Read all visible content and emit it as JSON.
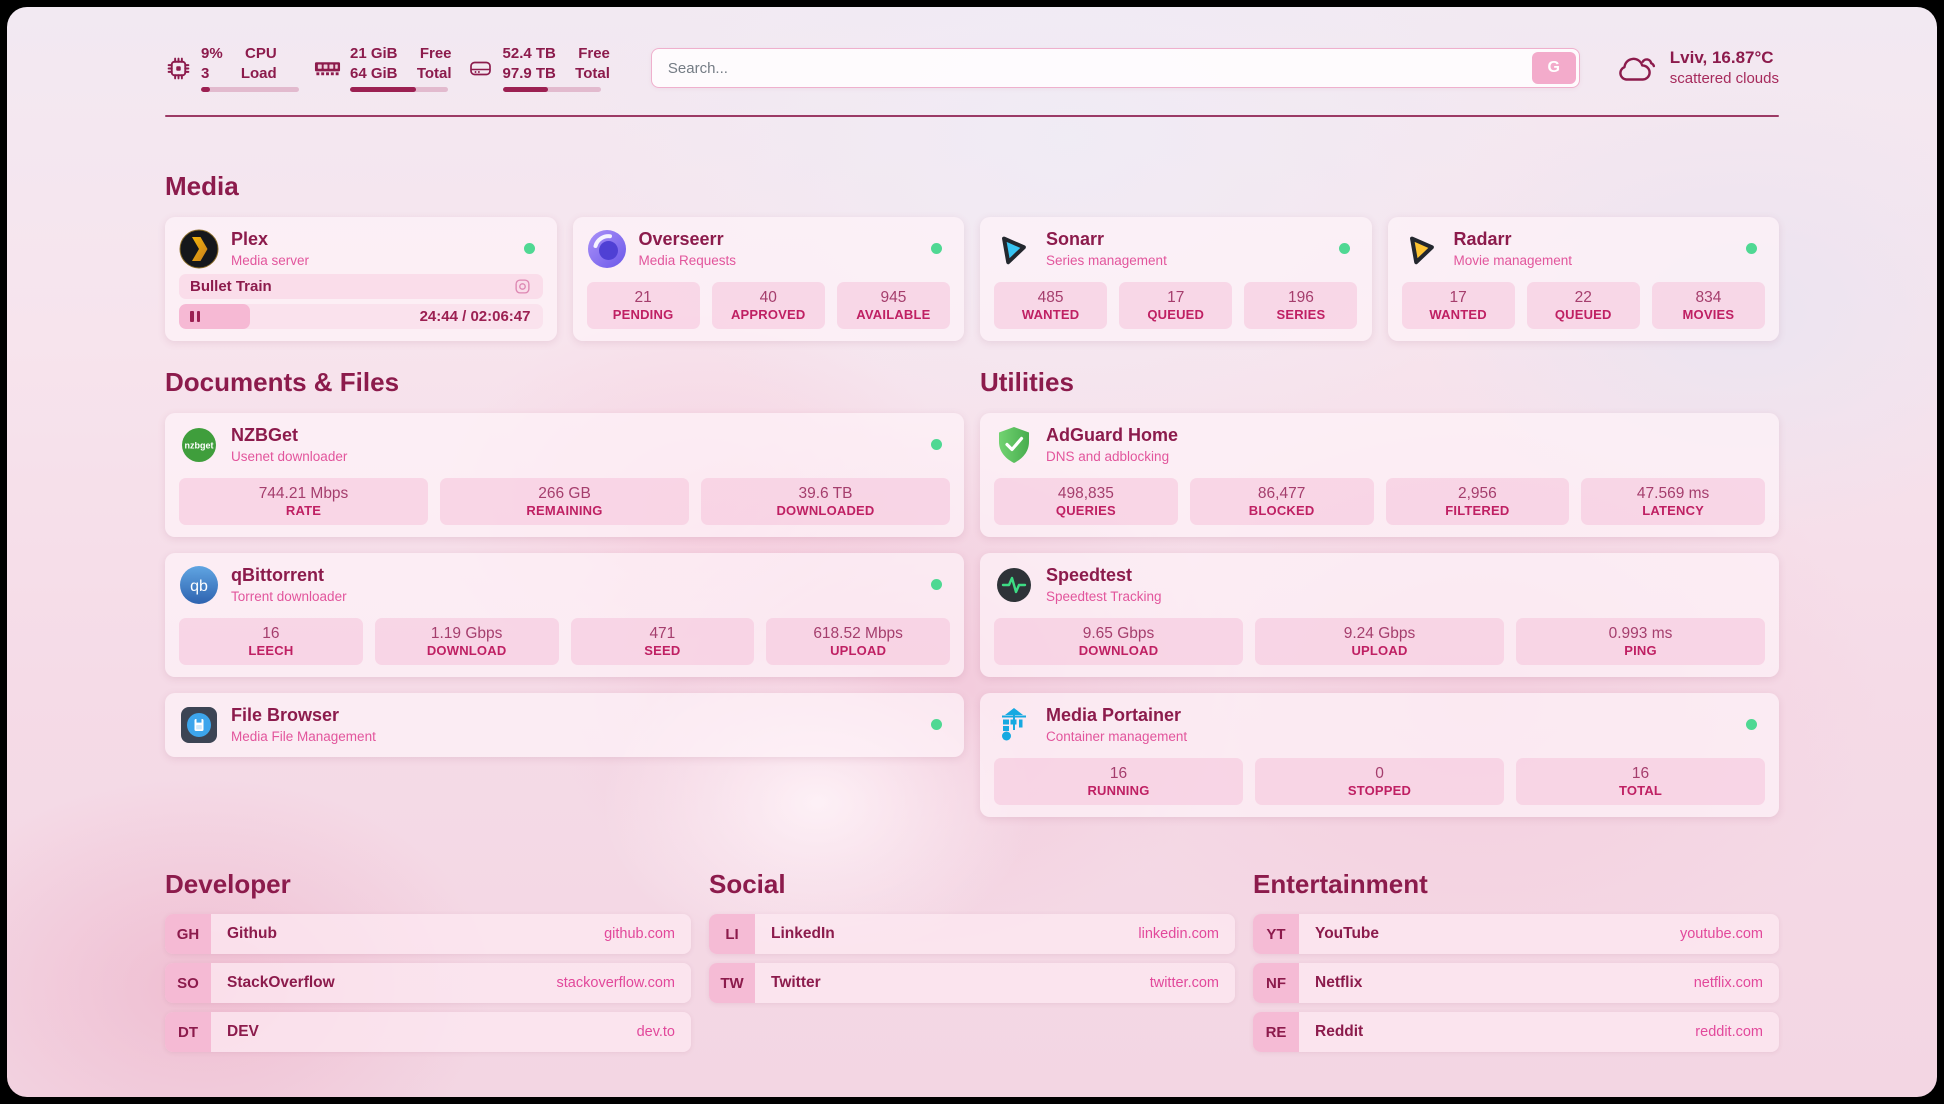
{
  "colors": {
    "accent_maroon": "#8c1b4c",
    "pink_text": "#e2559c",
    "label_crimson": "#bf2063",
    "status_green": "#4fd893",
    "search_button_bg": "#f3abcb"
  },
  "header": {
    "cpu": {
      "top_value": "9%",
      "bottom_value": "3",
      "top_label": "CPU",
      "bottom_label": "Load",
      "progress": 9
    },
    "memory": {
      "top_value": "21 GiB",
      "bottom_value": "64 GiB",
      "top_label": "Free",
      "bottom_label": "Total",
      "progress": 67
    },
    "storage": {
      "top_value": "52.4 TB",
      "bottom_value": "97.9 TB",
      "top_label": "Free",
      "bottom_label": "Total",
      "progress": 46
    },
    "search": {
      "placeholder": "Search...",
      "button_label": "G"
    },
    "weather": {
      "location_temp": "Lviv, 16.87°C",
      "condition": "scattered clouds"
    }
  },
  "sections": {
    "media": "Media",
    "documents": "Documents & Files",
    "utilities": "Utilities",
    "developer": "Developer",
    "social": "Social",
    "entertainment": "Entertainment"
  },
  "apps": {
    "plex": {
      "title": "Plex",
      "subtitle": "Media server",
      "online": true,
      "now_playing": {
        "title": "Bullet Train",
        "time": "24:44 / 02:06:47",
        "progress": 19.5,
        "state": "paused"
      }
    },
    "overseerr": {
      "title": "Overseerr",
      "subtitle": "Media Requests",
      "online": true,
      "stats": [
        {
          "value": "21",
          "label": "PENDING"
        },
        {
          "value": "40",
          "label": "APPROVED"
        },
        {
          "value": "945",
          "label": "AVAILABLE"
        }
      ]
    },
    "sonarr": {
      "title": "Sonarr",
      "subtitle": "Series management",
      "online": true,
      "stats": [
        {
          "value": "485",
          "label": "WANTED"
        },
        {
          "value": "17",
          "label": "QUEUED"
        },
        {
          "value": "196",
          "label": "SERIES"
        }
      ]
    },
    "radarr": {
      "title": "Radarr",
      "subtitle": "Movie management",
      "online": true,
      "stats": [
        {
          "value": "17",
          "label": "WANTED"
        },
        {
          "value": "22",
          "label": "QUEUED"
        },
        {
          "value": "834",
          "label": "MOVIES"
        }
      ]
    },
    "nzbget": {
      "title": "NZBGet",
      "subtitle": "Usenet downloader",
      "online": true,
      "stats": [
        {
          "value": "744.21 Mbps",
          "label": "RATE"
        },
        {
          "value": "266 GB",
          "label": "REMAINING"
        },
        {
          "value": "39.6 TB",
          "label": "DOWNLOADED"
        }
      ]
    },
    "qbittorrent": {
      "title": "qBittorrent",
      "subtitle": "Torrent downloader",
      "online": true,
      "stats": [
        {
          "value": "16",
          "label": "LEECH"
        },
        {
          "value": "1.19 Gbps",
          "label": "DOWNLOAD"
        },
        {
          "value": "471",
          "label": "SEED"
        },
        {
          "value": "618.52 Mbps",
          "label": "UPLOAD"
        }
      ]
    },
    "filebrowser": {
      "title": "File Browser",
      "subtitle": "Media File Management",
      "online": true
    },
    "adguard": {
      "title": "AdGuard Home",
      "subtitle": "DNS and adblocking",
      "online": false,
      "stats": [
        {
          "value": "498,835",
          "label": "QUERIES"
        },
        {
          "value": "86,477",
          "label": "BLOCKED"
        },
        {
          "value": "2,956",
          "label": "FILTERED"
        },
        {
          "value": "47.569 ms",
          "label": "LATENCY"
        }
      ]
    },
    "speedtest": {
      "title": "Speedtest",
      "subtitle": "Speedtest Tracking",
      "online": false,
      "stats": [
        {
          "value": "9.65 Gbps",
          "label": "DOWNLOAD"
        },
        {
          "value": "9.24 Gbps",
          "label": "UPLOAD"
        },
        {
          "value": "0.993 ms",
          "label": "PING"
        }
      ]
    },
    "portainer": {
      "title": "Media Portainer",
      "subtitle": "Container management",
      "online": true,
      "stats": [
        {
          "value": "16",
          "label": "RUNNING"
        },
        {
          "value": "0",
          "label": "STOPPED"
        },
        {
          "value": "16",
          "label": "TOTAL"
        }
      ]
    }
  },
  "bookmarks": {
    "developer": [
      {
        "abbr": "GH",
        "name": "Github",
        "url": "github.com"
      },
      {
        "abbr": "SO",
        "name": "StackOverflow",
        "url": "stackoverflow.com"
      },
      {
        "abbr": "DT",
        "name": "DEV",
        "url": "dev.to"
      }
    ],
    "social": [
      {
        "abbr": "LI",
        "name": "LinkedIn",
        "url": "linkedin.com"
      },
      {
        "abbr": "TW",
        "name": "Twitter",
        "url": "twitter.com"
      }
    ],
    "entertainment": [
      {
        "abbr": "YT",
        "name": "YouTube",
        "url": "youtube.com"
      },
      {
        "abbr": "NF",
        "name": "Netflix",
        "url": "netflix.com"
      },
      {
        "abbr": "RE",
        "name": "Reddit",
        "url": "reddit.com"
      }
    ]
  }
}
